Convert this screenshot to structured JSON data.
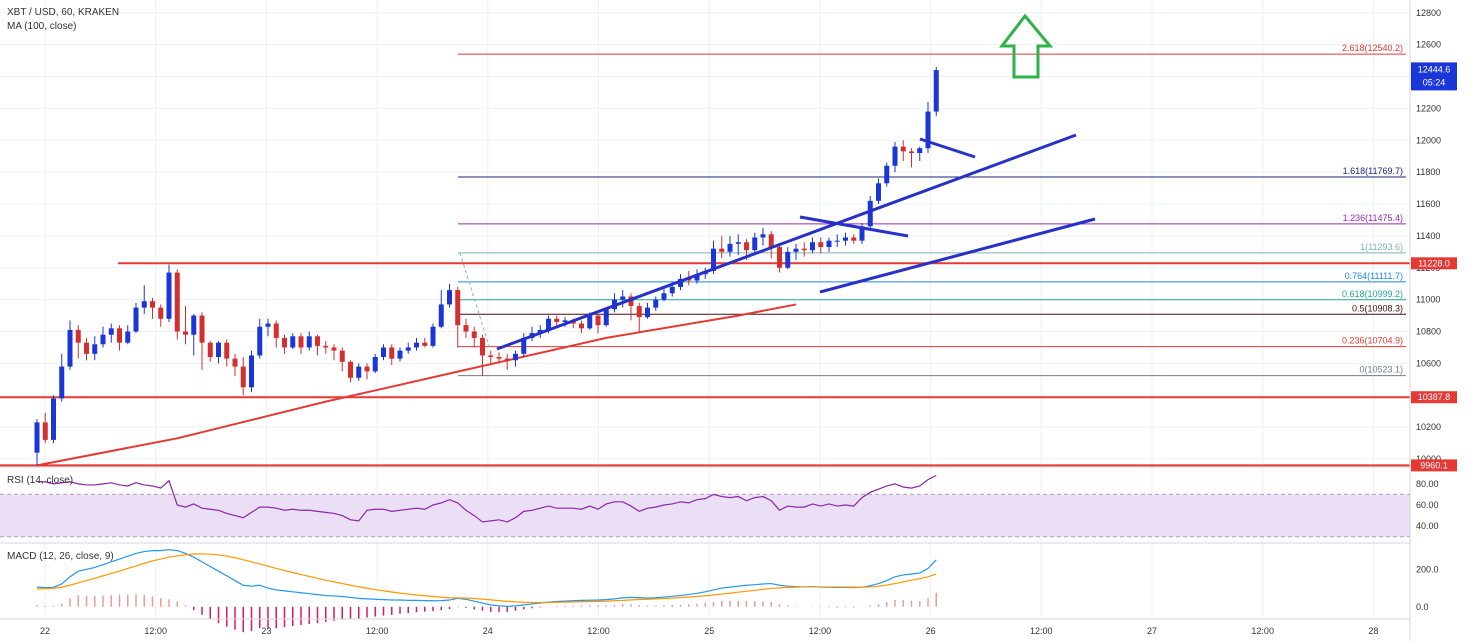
{
  "header": {
    "symbol": "XBT / USD, 60, KRAKEN",
    "ma_label": "MA (100, close)"
  },
  "chart_data": {
    "type": "candlestick",
    "price_axis": {
      "ticks": [
        12800,
        12600,
        12400,
        12200,
        12000,
        11800,
        11600,
        11400,
        11200,
        11000,
        10800,
        10600,
        10400,
        10200,
        10000
      ],
      "range": [
        9950,
        12880
      ]
    },
    "time_axis": {
      "ticks": [
        "22",
        "12:00",
        "23",
        "12:00",
        "24",
        "12:00",
        "25",
        "12:00",
        "26",
        "12:00",
        "27",
        "12:00",
        "28"
      ]
    },
    "fibonacci": [
      {
        "level": "0",
        "price": 10523.1,
        "label": "0(10523.1)",
        "color": "#787b86"
      },
      {
        "level": "0.236",
        "price": 10704.9,
        "label": "0.236(10704.9)",
        "color": "#e53935"
      },
      {
        "level": "0.5",
        "price": 10908.3,
        "label": "0.5(10908.3)",
        "color": "#4a0f0f"
      },
      {
        "level": "0.618",
        "price": 10999.2,
        "label": "0.618(10999.2)",
        "color": "#26a69a"
      },
      {
        "level": "0.764",
        "price": 11111.7,
        "label": "0.764(11111.7)",
        "color": "#1e88e5"
      },
      {
        "level": "1",
        "price": 11293.6,
        "label": "1(11293.6)",
        "color": "#7fb0b0"
      },
      {
        "level": "1.236",
        "price": 11475.4,
        "label": "1.236(11475.4)",
        "color": "#9c27b0"
      },
      {
        "level": "1.618",
        "price": 11769.7,
        "label": "1.618(11769.7)",
        "color": "#1a237e"
      },
      {
        "level": "2.618",
        "price": 12540.2,
        "label": "2.618(12540.2)",
        "color": "#e53935"
      }
    ],
    "horizontal_levels": [
      {
        "price": 11228.0,
        "label": "11228.0"
      },
      {
        "price": 10387.8,
        "label": "10387.8"
      },
      {
        "price": 9960.1,
        "label": "9960.1"
      }
    ],
    "last_price": {
      "price": 12444.6,
      "label": "12444.6",
      "countdown": "05:24"
    },
    "candles": [
      [
        10040,
        10230,
        9960,
        10250
      ],
      [
        10230,
        10120,
        10100,
        10290
      ],
      [
        10120,
        10380,
        10100,
        10400
      ],
      [
        10380,
        10580,
        10360,
        10660
      ],
      [
        10580,
        10810,
        10560,
        10870
      ],
      [
        10810,
        10730,
        10630,
        10840
      ],
      [
        10730,
        10660,
        10620,
        10760
      ],
      [
        10660,
        10720,
        10620,
        10770
      ],
      [
        10720,
        10780,
        10700,
        10830
      ],
      [
        10780,
        10820,
        10730,
        10850
      ],
      [
        10820,
        10730,
        10680,
        10840
      ],
      [
        10730,
        10800,
        10720,
        10840
      ],
      [
        10800,
        10950,
        10790,
        10980
      ],
      [
        10950,
        10990,
        10910,
        11090
      ],
      [
        10990,
        10950,
        10880,
        11010
      ],
      [
        10950,
        10880,
        10830,
        10970
      ],
      [
        10880,
        11170,
        10860,
        11220
      ],
      [
        11170,
        10800,
        10750,
        11190
      ],
      [
        10800,
        10780,
        10720,
        10960
      ],
      [
        10780,
        10900,
        10650,
        10910
      ],
      [
        10900,
        10730,
        10560,
        10920
      ],
      [
        10730,
        10640,
        10610,
        10740
      ],
      [
        10640,
        10730,
        10600,
        10740
      ],
      [
        10730,
        10630,
        10580,
        10750
      ],
      [
        10630,
        10580,
        10520,
        10660
      ],
      [
        10580,
        10450,
        10400,
        10640
      ],
      [
        10450,
        10650,
        10420,
        10680
      ],
      [
        10650,
        10830,
        10630,
        10880
      ],
      [
        10830,
        10850,
        10770,
        10880
      ],
      [
        10850,
        10760,
        10700,
        10870
      ],
      [
        10760,
        10700,
        10660,
        10780
      ],
      [
        10700,
        10770,
        10690,
        10790
      ],
      [
        10770,
        10700,
        10660,
        10790
      ],
      [
        10700,
        10770,
        10680,
        10800
      ],
      [
        10770,
        10710,
        10650,
        10780
      ],
      [
        10710,
        10700,
        10660,
        10740
      ],
      [
        10700,
        10680,
        10620,
        10720
      ],
      [
        10680,
        10610,
        10550,
        10700
      ],
      [
        10610,
        10510,
        10480,
        10620
      ],
      [
        10510,
        10580,
        10490,
        10600
      ],
      [
        10580,
        10550,
        10500,
        10600
      ],
      [
        10550,
        10640,
        10540,
        10660
      ],
      [
        10640,
        10700,
        10620,
        10720
      ],
      [
        10700,
        10630,
        10590,
        10720
      ],
      [
        10630,
        10680,
        10610,
        10700
      ],
      [
        10680,
        10700,
        10660,
        10730
      ],
      [
        10700,
        10730,
        10680,
        10760
      ],
      [
        10730,
        10710,
        10700,
        10760
      ],
      [
        10710,
        10830,
        10700,
        10850
      ],
      [
        10830,
        10970,
        10820,
        11060
      ],
      [
        10970,
        11060,
        10950,
        11100
      ],
      [
        11060,
        10840,
        10700,
        11080
      ],
      [
        10840,
        10800,
        10760,
        10880
      ],
      [
        10800,
        10760,
        10700,
        10830
      ],
      [
        10760,
        10650,
        10520,
        10780
      ],
      [
        10650,
        10640,
        10590,
        10680
      ],
      [
        10640,
        10630,
        10600,
        10670
      ],
      [
        10630,
        10620,
        10560,
        10660
      ],
      [
        10620,
        10660,
        10580,
        10680
      ],
      [
        10660,
        10760,
        10640,
        10790
      ],
      [
        10760,
        10790,
        10740,
        10830
      ],
      [
        10790,
        10810,
        10760,
        10840
      ],
      [
        10810,
        10880,
        10790,
        10900
      ],
      [
        10880,
        10860,
        10820,
        10900
      ],
      [
        10860,
        10870,
        10830,
        10890
      ],
      [
        10870,
        10850,
        10820,
        10880
      ],
      [
        10850,
        10820,
        10790,
        10870
      ],
      [
        10820,
        10900,
        10810,
        10920
      ],
      [
        10900,
        10840,
        10790,
        10910
      ],
      [
        10840,
        10940,
        10830,
        10950
      ],
      [
        10940,
        11000,
        10920,
        11040
      ],
      [
        11000,
        11020,
        10950,
        11060
      ],
      [
        11020,
        10960,
        10870,
        11040
      ],
      [
        10960,
        10890,
        10800,
        10980
      ],
      [
        10890,
        10950,
        10880,
        10980
      ],
      [
        10950,
        11000,
        10930,
        11020
      ],
      [
        11000,
        11040,
        10990,
        11070
      ],
      [
        11040,
        11080,
        11020,
        11110
      ],
      [
        11080,
        11130,
        11060,
        11160
      ],
      [
        11130,
        11120,
        11090,
        11180
      ],
      [
        11120,
        11160,
        11100,
        11190
      ],
      [
        11160,
        11180,
        11130,
        11200
      ],
      [
        11180,
        11320,
        11160,
        11370
      ],
      [
        11320,
        11300,
        11260,
        11400
      ],
      [
        11300,
        11350,
        11270,
        11400
      ],
      [
        11350,
        11360,
        11280,
        11410
      ],
      [
        11360,
        11310,
        11250,
        11380
      ],
      [
        11310,
        11390,
        11290,
        11420
      ],
      [
        11390,
        11410,
        11340,
        11450
      ],
      [
        11410,
        11330,
        11260,
        11430
      ],
      [
        11330,
        11200,
        11170,
        11350
      ],
      [
        11200,
        11300,
        11190,
        11330
      ],
      [
        11300,
        11320,
        11250,
        11350
      ],
      [
        11320,
        11310,
        11270,
        11360
      ],
      [
        11310,
        11360,
        11290,
        11390
      ],
      [
        11360,
        11330,
        11290,
        11390
      ],
      [
        11330,
        11370,
        11300,
        11390
      ],
      [
        11370,
        11370,
        11330,
        11410
      ],
      [
        11370,
        11390,
        11340,
        11420
      ],
      [
        11390,
        11370,
        11350,
        11410
      ],
      [
        11370,
        11460,
        11350,
        11480
      ],
      [
        11460,
        11620,
        11440,
        11650
      ],
      [
        11620,
        11730,
        11600,
        11760
      ],
      [
        11730,
        11840,
        11710,
        11860
      ],
      [
        11840,
        11960,
        11800,
        11990
      ],
      [
        11960,
        11930,
        11870,
        12000
      ],
      [
        11930,
        11920,
        11830,
        11950
      ],
      [
        11920,
        11950,
        11870,
        11960
      ],
      [
        11950,
        12180,
        11920,
        12240
      ],
      [
        12180,
        12440,
        12150,
        12460
      ]
    ],
    "ma100": [
      [
        0,
        9960
      ],
      [
        17,
        10130
      ],
      [
        35,
        10360
      ],
      [
        52,
        10560
      ],
      [
        69,
        10760
      ],
      [
        85,
        10900
      ],
      [
        92,
        10970
      ]
    ],
    "rsi": {
      "label": "RSI (14, close)",
      "ticks": [
        80.0,
        60.0,
        40.0
      ],
      "band": [
        30,
        70
      ],
      "values": [
        82,
        82,
        80,
        81,
        82,
        80,
        79,
        79,
        80,
        81,
        79,
        78,
        81,
        79,
        78,
        76,
        83,
        60,
        58,
        61,
        57,
        56,
        55,
        52,
        50,
        48,
        53,
        58,
        58,
        57,
        55,
        56,
        55,
        55,
        54,
        53,
        52,
        50,
        46,
        45,
        55,
        56,
        56,
        54,
        55,
        56,
        57,
        56,
        60,
        62,
        65,
        62,
        55,
        50,
        44,
        45,
        46,
        44,
        48,
        54,
        55,
        57,
        59,
        57,
        57,
        57,
        56,
        59,
        56,
        61,
        63,
        63,
        59,
        54,
        57,
        58,
        60,
        61,
        63,
        62,
        65,
        66,
        70,
        68,
        67,
        68,
        64,
        67,
        68,
        64,
        55,
        59,
        58,
        58,
        61,
        59,
        61,
        59,
        60,
        59,
        67,
        72,
        75,
        78,
        80,
        77,
        76,
        78,
        84,
        88
      ]
    },
    "macd": {
      "label": "MACD (12, 26, close, 9)",
      "ticks": [
        200.0,
        0.0
      ],
      "macd_values": [
        105,
        102,
        104,
        122,
        160,
        190,
        200,
        210,
        225,
        240,
        255,
        270,
        285,
        295,
        300,
        300,
        305,
        300,
        285,
        265,
        240,
        215,
        190,
        165,
        140,
        115,
        110,
        115,
        100,
        90,
        85,
        80,
        75,
        70,
        65,
        60,
        58,
        55,
        50,
        45,
        42,
        40,
        38,
        36,
        36,
        34,
        34,
        33,
        32,
        33,
        36,
        45,
        40,
        30,
        20,
        10,
        5,
        2,
        5,
        10,
        15,
        20,
        25,
        28,
        30,
        32,
        34,
        35,
        36,
        38,
        42,
        48,
        50,
        48,
        46,
        48,
        52,
        56,
        60,
        66,
        72,
        80,
        90,
        100,
        105,
        110,
        115,
        118,
        122,
        124,
        115,
        110,
        108,
        106,
        108,
        105,
        104,
        103,
        104,
        102,
        105,
        112,
        124,
        140,
        160,
        170,
        175,
        180,
        205,
        250
      ],
      "signal_values": [
        95,
        97,
        99,
        105,
        115,
        128,
        140,
        152,
        165,
        178,
        190,
        205,
        218,
        232,
        245,
        255,
        265,
        272,
        278,
        282,
        283,
        281,
        277,
        271,
        262,
        251,
        240,
        229,
        217,
        205,
        194,
        183,
        172,
        162,
        152,
        142,
        133,
        124,
        115,
        107,
        99,
        92,
        85,
        79,
        73,
        68,
        63,
        59,
        55,
        51,
        48,
        47,
        46,
        44,
        41,
        37,
        33,
        29,
        26,
        24,
        23,
        23,
        23,
        24,
        25,
        26,
        27,
        28,
        29,
        30,
        32,
        34,
        37,
        39,
        40,
        42,
        44,
        46,
        49,
        52,
        55,
        59,
        63,
        68,
        73,
        78,
        83,
        88,
        93,
        98,
        101,
        103,
        105,
        106,
        106,
        106,
        106,
        106,
        106,
        105,
        105,
        106,
        110,
        116,
        124,
        133,
        142,
        150,
        160,
        175
      ]
    }
  }
}
